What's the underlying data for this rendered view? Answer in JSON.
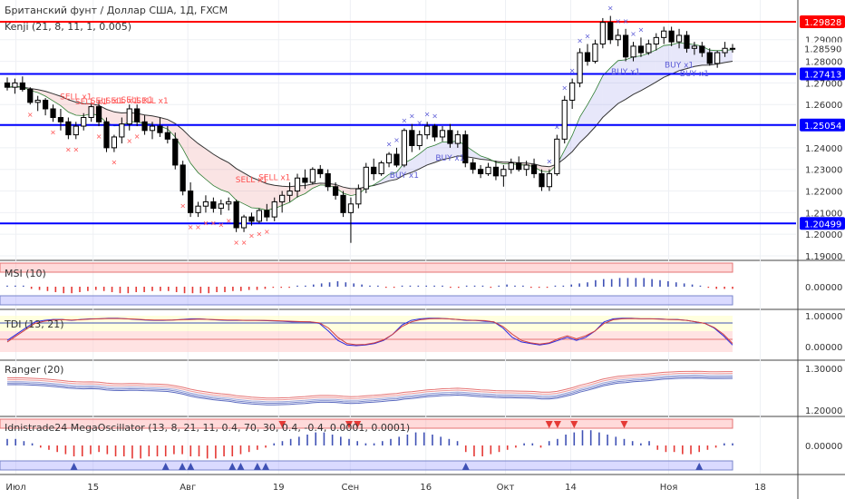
{
  "header": {
    "title": "Британский фунт / Доллар США, 1Д, FXCM",
    "indicator": "Kenji (21, 8, 11, 1, 0.005)"
  },
  "colors": {
    "up": "#ffffff",
    "down": "#000000",
    "hline_red": "#ff0000",
    "hline_blue": "#0000ff",
    "sell": "#ff5252",
    "buy": "#5b5bd6",
    "price_badge": "#000000"
  },
  "chart_data": [
    {
      "type": "candlestick",
      "name": "price",
      "ylim": [
        1.19,
        1.305
      ],
      "y_ticks": [
        "1.29000",
        "1.28000",
        "1.27000",
        "1.26000",
        "1.25000",
        "1.24000",
        "1.23000",
        "1.22000",
        "1.21000",
        "1.20000",
        "1.19000"
      ],
      "price_labels": [
        {
          "text": "1.29828",
          "value": 1.29828,
          "style": "red"
        },
        {
          "text": "1.28590",
          "value": 1.2859,
          "style": "plain"
        },
        {
          "text": "1.27413",
          "value": 1.27413,
          "style": "blue"
        },
        {
          "text": "1.25054",
          "value": 1.25054,
          "style": "blue"
        },
        {
          "text": "1.20499",
          "value": 1.20499,
          "style": "blue"
        }
      ],
      "hlines": [
        {
          "value": 1.29828,
          "color": "red"
        },
        {
          "value": 1.27413,
          "color": "blue"
        },
        {
          "value": 1.25054,
          "color": "blue"
        },
        {
          "value": 1.20499,
          "color": "blue"
        }
      ],
      "candles": [
        [
          1.27,
          1.2725,
          1.2665,
          1.268
        ],
        [
          1.268,
          1.272,
          1.265,
          1.27
        ],
        [
          1.27,
          1.273,
          1.266,
          1.267
        ],
        [
          1.267,
          1.268,
          1.26,
          1.261
        ],
        [
          1.261,
          1.264,
          1.257,
          1.262
        ],
        [
          1.262,
          1.263,
          1.255,
          1.258
        ],
        [
          1.258,
          1.26,
          1.252,
          1.254
        ],
        [
          1.254,
          1.258,
          1.248,
          1.252
        ],
        [
          1.252,
          1.254,
          1.244,
          1.246
        ],
        [
          1.246,
          1.252,
          1.244,
          1.25
        ],
        [
          1.25,
          1.256,
          1.248,
          1.254
        ],
        [
          1.254,
          1.261,
          1.252,
          1.259
        ],
        [
          1.259,
          1.262,
          1.25,
          1.252
        ],
        [
          1.252,
          1.254,
          1.238,
          1.24
        ],
        [
          1.24,
          1.246,
          1.238,
          1.245
        ],
        [
          1.245,
          1.254,
          1.242,
          1.251
        ],
        [
          1.251,
          1.26,
          1.248,
          1.258
        ],
        [
          1.258,
          1.26,
          1.25,
          1.252
        ],
        [
          1.252,
          1.255,
          1.246,
          1.248
        ],
        [
          1.248,
          1.252,
          1.244,
          1.25
        ],
        [
          1.25,
          1.254,
          1.245,
          1.247
        ],
        [
          1.247,
          1.25,
          1.242,
          1.244
        ],
        [
          1.244,
          1.247,
          1.23,
          1.232
        ],
        [
          1.232,
          1.234,
          1.218,
          1.22
        ],
        [
          1.22,
          1.224,
          1.208,
          1.21
        ],
        [
          1.21,
          1.215,
          1.208,
          1.213
        ],
        [
          1.213,
          1.218,
          1.21,
          1.215
        ],
        [
          1.215,
          1.217,
          1.21,
          1.212
        ],
        [
          1.212,
          1.216,
          1.209,
          1.214
        ],
        [
          1.214,
          1.217,
          1.211,
          1.215
        ],
        [
          1.215,
          1.216,
          1.201,
          1.203
        ],
        [
          1.203,
          1.209,
          1.201,
          1.208
        ],
        [
          1.208,
          1.21,
          1.204,
          1.206
        ],
        [
          1.206,
          1.212,
          1.205,
          1.211
        ],
        [
          1.211,
          1.214,
          1.206,
          1.208
        ],
        [
          1.208,
          1.217,
          1.206,
          1.215
        ],
        [
          1.215,
          1.22,
          1.21,
          1.218
        ],
        [
          1.218,
          1.224,
          1.215,
          1.22
        ],
        [
          1.22,
          1.228,
          1.217,
          1.226
        ],
        [
          1.226,
          1.23,
          1.221,
          1.224
        ],
        [
          1.224,
          1.231,
          1.223,
          1.23
        ],
        [
          1.23,
          1.232,
          1.226,
          1.228
        ],
        [
          1.228,
          1.23,
          1.22,
          1.222
        ],
        [
          1.222,
          1.224,
          1.216,
          1.218
        ],
        [
          1.218,
          1.22,
          1.208,
          1.21
        ],
        [
          1.21,
          1.217,
          1.196,
          1.214
        ],
        [
          1.214,
          1.223,
          1.212,
          1.221
        ],
        [
          1.221,
          1.233,
          1.219,
          1.231
        ],
        [
          1.231,
          1.235,
          1.225,
          1.228
        ],
        [
          1.228,
          1.234,
          1.227,
          1.233
        ],
        [
          1.233,
          1.238,
          1.231,
          1.237
        ],
        [
          1.237,
          1.24,
          1.231,
          1.232
        ],
        [
          1.232,
          1.249,
          1.231,
          1.248
        ],
        [
          1.248,
          1.251,
          1.238,
          1.241
        ],
        [
          1.241,
          1.248,
          1.239,
          1.246
        ],
        [
          1.246,
          1.252,
          1.244,
          1.25
        ],
        [
          1.25,
          1.251,
          1.243,
          1.245
        ],
        [
          1.245,
          1.25,
          1.243,
          1.248
        ],
        [
          1.248,
          1.251,
          1.24,
          1.242
        ],
        [
          1.242,
          1.248,
          1.24,
          1.246
        ],
        [
          1.246,
          1.248,
          1.231,
          1.233
        ],
        [
          1.233,
          1.235,
          1.228,
          1.23
        ],
        [
          1.23,
          1.232,
          1.226,
          1.228
        ],
        [
          1.228,
          1.233,
          1.227,
          1.231
        ],
        [
          1.231,
          1.234,
          1.225,
          1.227
        ],
        [
          1.227,
          1.232,
          1.222,
          1.23
        ],
        [
          1.23,
          1.235,
          1.228,
          1.233
        ],
        [
          1.233,
          1.236,
          1.229,
          1.23
        ],
        [
          1.23,
          1.234,
          1.227,
          1.232
        ],
        [
          1.232,
          1.235,
          1.226,
          1.228
        ],
        [
          1.228,
          1.23,
          1.22,
          1.222
        ],
        [
          1.222,
          1.23,
          1.22,
          1.228
        ],
        [
          1.228,
          1.246,
          1.227,
          1.244
        ],
        [
          1.244,
          1.264,
          1.242,
          1.262
        ],
        [
          1.262,
          1.272,
          1.258,
          1.27
        ],
        [
          1.27,
          1.286,
          1.268,
          1.284
        ],
        [
          1.284,
          1.288,
          1.278,
          1.28
        ],
        [
          1.28,
          1.29,
          1.279,
          1.288
        ],
        [
          1.288,
          1.3,
          1.286,
          1.298
        ],
        [
          1.298,
          1.301,
          1.288,
          1.29
        ],
        [
          1.29,
          1.295,
          1.287,
          1.292
        ],
        [
          1.292,
          1.295,
          1.28,
          1.282
        ],
        [
          1.282,
          1.289,
          1.28,
          1.287
        ],
        [
          1.287,
          1.291,
          1.282,
          1.284
        ],
        [
          1.284,
          1.29,
          1.283,
          1.288
        ],
        [
          1.288,
          1.293,
          1.285,
          1.291
        ],
        [
          1.291,
          1.296,
          1.288,
          1.294
        ],
        [
          1.294,
          1.296,
          1.287,
          1.289
        ],
        [
          1.289,
          1.295,
          1.286,
          1.292
        ],
        [
          1.292,
          1.294,
          1.284,
          1.286
        ],
        [
          1.286,
          1.289,
          1.283,
          1.287
        ],
        [
          1.287,
          1.289,
          1.282,
          1.284
        ],
        [
          1.284,
          1.286,
          1.278,
          1.279
        ],
        [
          1.279,
          1.285,
          1.277,
          1.284
        ],
        [
          1.284,
          1.289,
          1.282,
          1.286
        ],
        [
          1.286,
          1.288,
          1.284,
          1.2859
        ]
      ],
      "signals": [
        {
          "label": "SELL x1",
          "index": 9,
          "value": 1.2625
        },
        {
          "label": "SELL x1",
          "index": 11,
          "value": 1.26
        },
        {
          "label": "SELL x1",
          "index": 13,
          "value": 1.2605
        },
        {
          "label": "SELL x1",
          "index": 15,
          "value": 1.2605
        },
        {
          "label": "SELL x1",
          "index": 17,
          "value": 1.261
        },
        {
          "label": "SELL x1",
          "index": 19,
          "value": 1.2605
        },
        {
          "label": "SELL x1",
          "index": 32,
          "value": 1.224
        },
        {
          "label": "SELL x1",
          "index": 35,
          "value": 1.225
        },
        {
          "label": "BUY x1",
          "index": 52,
          "value": 1.226
        },
        {
          "label": "BUY x1",
          "index": 58,
          "value": 1.234
        },
        {
          "label": "BUY x1",
          "index": 81,
          "value": 1.274
        },
        {
          "label": "BUY x1",
          "index": 88,
          "value": 1.277
        },
        {
          "label": "BUY x1",
          "index": 90,
          "value": 1.273
        }
      ]
    },
    {
      "type": "histogram",
      "name": "MSI (10)",
      "value_label": "0.00000",
      "values": [
        0.1,
        0.1,
        0.1,
        -0.2,
        -0.3,
        -0.4,
        -0.5,
        -0.6,
        -0.6,
        -0.5,
        -0.4,
        -0.3,
        -0.4,
        -0.5,
        -0.6,
        -0.6,
        -0.5,
        -0.5,
        -0.4,
        -0.4,
        -0.4,
        -0.5,
        -0.6,
        -0.6,
        -0.6,
        -0.6,
        -0.5,
        -0.5,
        -0.4,
        -0.4,
        -0.3,
        -0.3,
        -0.2,
        -0.1,
        -0.1,
        -0.1,
        0.1,
        0.1,
        0.2,
        0.3,
        0.4,
        0.5,
        0.4,
        0.3,
        0.2,
        0.1,
        0.1,
        -0.1,
        -0.1,
        0.1,
        0.1,
        0.1,
        0.1,
        0.1,
        0.1,
        -0.1,
        -0.1,
        0.1,
        0.1,
        0.1,
        -0.1,
        0.1,
        0.2,
        0.1,
        0.1,
        -0.1,
        -0.1,
        -0.1,
        0.1,
        0.1,
        0.2,
        0.3,
        0.4,
        0.6,
        0.7,
        0.7,
        0.8,
        0.8,
        0.8,
        0.8,
        0.7,
        0.6,
        0.5,
        0.4,
        0.3,
        0.2,
        0.1,
        -0.1,
        -0.2,
        -0.2,
        -0.2
      ]
    },
    {
      "type": "line",
      "name": "TDI (13, 21)",
      "y_ticks": [
        "1.00000",
        "0.00000"
      ],
      "series": [
        {
          "color": "#2b2be0",
          "values": [
            0.2,
            0.4,
            0.6,
            0.8,
            0.85,
            0.88,
            0.88,
            0.85,
            0.88,
            0.9,
            0.9,
            0.92,
            0.92,
            0.9,
            0.88,
            0.86,
            0.85,
            0.85,
            0.86,
            0.88,
            0.9,
            0.9,
            0.88,
            0.86,
            0.85,
            0.85,
            0.85,
            0.85,
            0.84,
            0.83,
            0.82,
            0.8,
            0.8,
            0.8,
            0.75,
            0.5,
            0.2,
            0.05,
            0.03,
            0.05,
            0.1,
            0.2,
            0.4,
            0.7,
            0.85,
            0.9,
            0.92,
            0.92,
            0.9,
            0.88,
            0.85,
            0.85,
            0.82,
            0.8,
            0.6,
            0.3,
            0.15,
            0.1,
            0.05,
            0.1,
            0.2,
            0.3,
            0.2,
            0.3,
            0.5,
            0.8,
            0.9,
            0.92,
            0.92,
            0.9,
            0.9,
            0.9,
            0.88,
            0.88,
            0.85,
            0.8,
            0.75,
            0.6,
            0.35,
            0.05
          ]
        },
        {
          "color": "#d04040",
          "values": [
            0.15,
            0.35,
            0.55,
            0.75,
            0.82,
            0.86,
            0.87,
            0.86,
            0.87,
            0.89,
            0.9,
            0.91,
            0.91,
            0.9,
            0.89,
            0.87,
            0.86,
            0.86,
            0.86,
            0.87,
            0.88,
            0.89,
            0.88,
            0.87,
            0.86,
            0.86,
            0.85,
            0.85,
            0.85,
            0.84,
            0.83,
            0.82,
            0.81,
            0.8,
            0.77,
            0.6,
            0.3,
            0.1,
            0.06,
            0.07,
            0.12,
            0.22,
            0.4,
            0.65,
            0.8,
            0.87,
            0.9,
            0.91,
            0.9,
            0.88,
            0.86,
            0.85,
            0.84,
            0.8,
            0.65,
            0.4,
            0.2,
            0.12,
            0.08,
            0.12,
            0.25,
            0.35,
            0.25,
            0.35,
            0.5,
            0.75,
            0.87,
            0.9,
            0.91,
            0.9,
            0.9,
            0.89,
            0.88,
            0.87,
            0.85,
            0.8,
            0.75,
            0.62,
            0.4,
            0.1
          ]
        }
      ]
    },
    {
      "type": "bands",
      "name": "Ranger (20)",
      "y_ticks": [
        "1.30000",
        "1.20000"
      ]
    },
    {
      "type": "histogram",
      "name": "Idnistrade24 MegaOscillator (13, 8, 21, 11, 0.4, 70, 30, 0.4, -0.4, 0.0001, 0.0001)",
      "value_label": "0.00000",
      "values": [
        0.3,
        0.3,
        0.2,
        0.1,
        -0.1,
        -0.2,
        -0.3,
        -0.4,
        -0.5,
        -0.5,
        -0.4,
        -0.3,
        -0.4,
        -0.5,
        -0.5,
        -0.6,
        -0.6,
        -0.5,
        -0.5,
        -0.5,
        -0.4,
        -0.4,
        -0.5,
        -0.5,
        -0.6,
        -0.6,
        -0.5,
        -0.5,
        -0.4,
        -0.3,
        -0.2,
        -0.1,
        0.1,
        0.2,
        0.3,
        0.4,
        0.5,
        0.6,
        0.6,
        0.5,
        0.4,
        0.3,
        0.2,
        0.1,
        0.1,
        0.2,
        0.3,
        0.4,
        0.5,
        0.6,
        0.6,
        0.5,
        0.4,
        0.3,
        0.2,
        -0.3,
        -0.5,
        -0.5,
        -0.4,
        -0.3,
        -0.2,
        -0.1,
        0.1,
        0.1,
        -0.1,
        0.2,
        0.3,
        0.5,
        0.6,
        0.7,
        0.7,
        0.6,
        0.5,
        0.4,
        0.3,
        0.2,
        0.1,
        0.2,
        -0.2,
        -0.3,
        -0.3,
        -0.4,
        -0.4,
        -0.3,
        -0.2,
        -0.1,
        0.1,
        0.1
      ],
      "markers": [
        {
          "kind": "up",
          "index": 8
        },
        {
          "kind": "up",
          "index": 19
        },
        {
          "kind": "up",
          "index": 21
        },
        {
          "kind": "up",
          "index": 22
        },
        {
          "kind": "up",
          "index": 27
        },
        {
          "kind": "up",
          "index": 28
        },
        {
          "kind": "up",
          "index": 30
        },
        {
          "kind": "up",
          "index": 31
        },
        {
          "kind": "down",
          "index": 33
        },
        {
          "kind": "down",
          "index": 41
        },
        {
          "kind": "down",
          "index": 42
        },
        {
          "kind": "up",
          "index": 55
        },
        {
          "kind": "down",
          "index": 65
        },
        {
          "kind": "down",
          "index": 66
        },
        {
          "kind": "down",
          "index": 68
        },
        {
          "kind": "down",
          "index": 74
        },
        {
          "kind": "up",
          "index": 83
        }
      ]
    }
  ],
  "time_axis": [
    "Июл",
    "15",
    "Авг",
    "19",
    "Сен",
    "16",
    "Окт",
    "14",
    "Ноя",
    "18"
  ]
}
